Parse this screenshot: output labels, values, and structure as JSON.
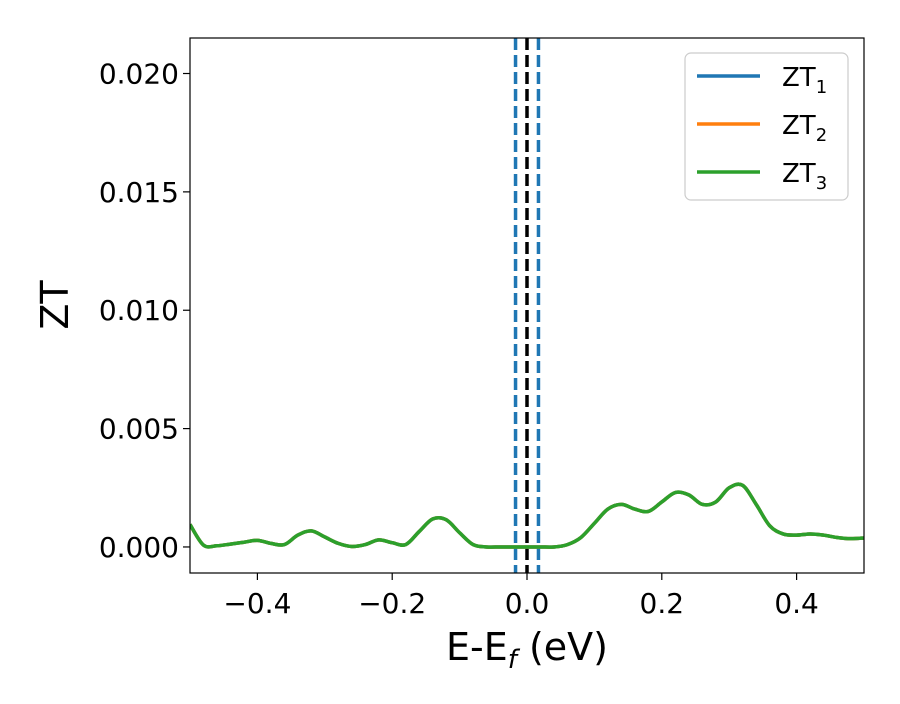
{
  "chart_data": {
    "type": "line",
    "xlabel": {
      "main": "E-E",
      "sub": "f",
      "suffix": " (eV)"
    },
    "ylabel": "ZT",
    "xlim": [
      -0.5,
      0.5
    ],
    "ylim": [
      -0.0011,
      0.0215
    ],
    "x_ticks": [
      -0.4,
      -0.2,
      0.0,
      0.2,
      0.4
    ],
    "x_tick_labels": [
      "−0.4",
      "−0.2",
      "0.0",
      "0.2",
      "0.4"
    ],
    "y_ticks": [
      0.0,
      0.005,
      0.01,
      0.015,
      0.02
    ],
    "y_tick_labels": [
      "0.000",
      "0.005",
      "0.010",
      "0.015",
      "0.020"
    ],
    "grid": false,
    "legend_position": "top-right",
    "series": [
      {
        "name": "ZT",
        "sub": "1",
        "color": "#1f77b4"
      },
      {
        "name": "ZT",
        "sub": "2",
        "color": "#ff7f0e"
      },
      {
        "name": "ZT",
        "sub": "3",
        "color": "#2ca02c"
      }
    ],
    "x": [
      -0.5,
      -0.48,
      -0.46,
      -0.44,
      -0.42,
      -0.4,
      -0.38,
      -0.36,
      -0.34,
      -0.32,
      -0.3,
      -0.28,
      -0.26,
      -0.24,
      -0.22,
      -0.2,
      -0.18,
      -0.16,
      -0.14,
      -0.12,
      -0.1,
      -0.08,
      -0.06,
      -0.04,
      -0.02,
      0.0,
      0.02,
      0.04,
      0.06,
      0.08,
      0.1,
      0.12,
      0.14,
      0.16,
      0.18,
      0.2,
      0.22,
      0.24,
      0.26,
      0.28,
      0.3,
      0.32,
      0.34,
      0.36,
      0.38,
      0.4,
      0.42,
      0.44,
      0.46,
      0.48,
      0.5
    ],
    "y": [
      0.00095,
      8e-05,
      5e-05,
      0.00012,
      0.0002,
      0.00028,
      0.00015,
      0.0001,
      0.0005,
      0.00068,
      0.00042,
      0.00015,
      2e-05,
      0.0001,
      0.0003,
      0.00018,
      0.0001,
      0.00065,
      0.00118,
      0.00115,
      0.0006,
      0.0001,
      0.0,
      0.0,
      0.0,
      0.0,
      0.0,
      0.0,
      0.0001,
      0.0004,
      0.001,
      0.0016,
      0.0018,
      0.0016,
      0.0015,
      0.0019,
      0.0023,
      0.0022,
      0.0018,
      0.0019,
      0.0025,
      0.0026,
      0.0018,
      0.0009,
      0.00055,
      0.0005,
      0.00055,
      0.0005,
      0.0004,
      0.00035,
      0.00038
    ],
    "vlines": [
      {
        "x": -0.017,
        "color": "#1f77b4",
        "style": "dashed"
      },
      {
        "x": 0.0,
        "color": "#000000",
        "style": "dashed"
      },
      {
        "x": 0.017,
        "color": "#1f77b4",
        "style": "dashed"
      }
    ]
  }
}
